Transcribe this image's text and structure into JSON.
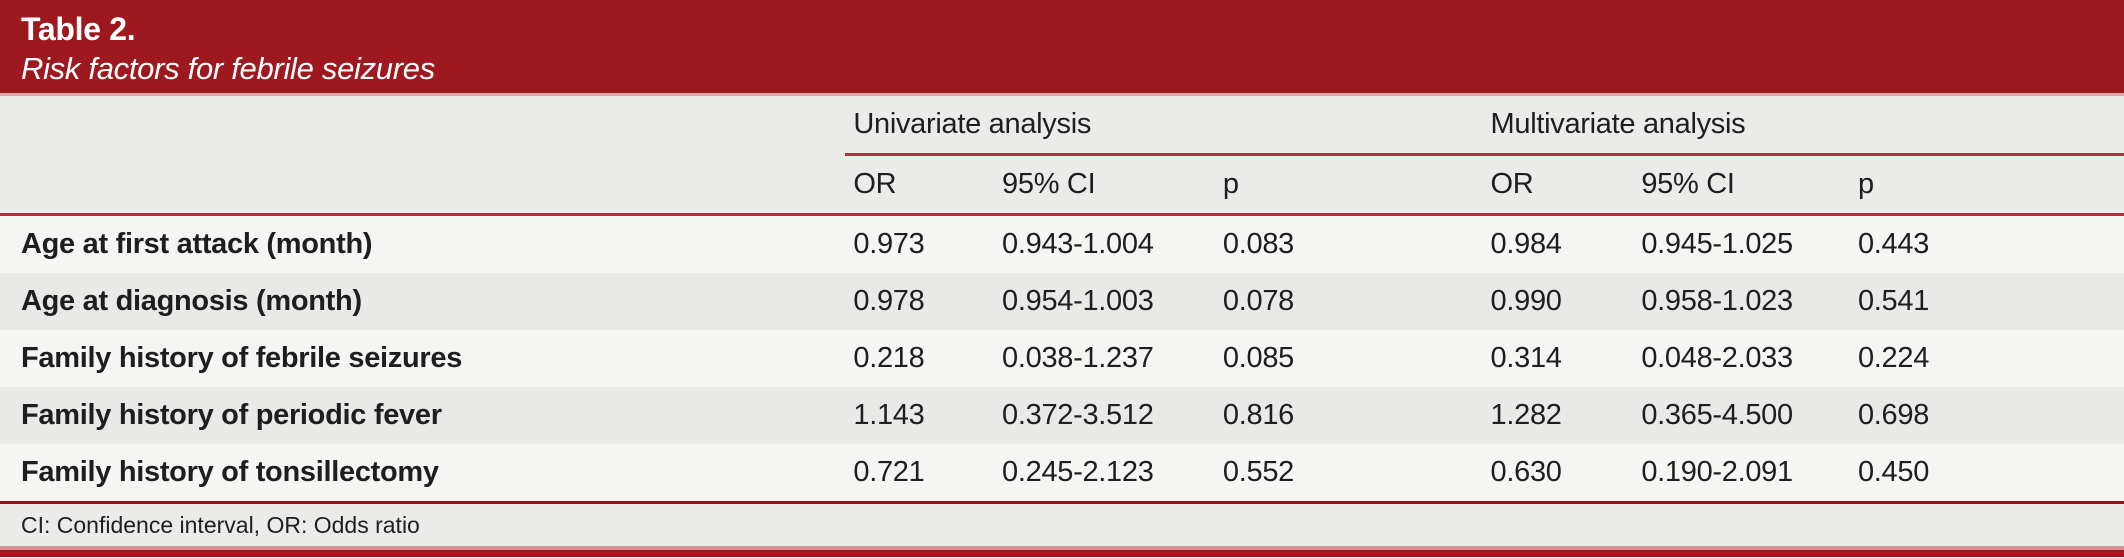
{
  "title": {
    "label": "Table 2.",
    "subtitle": "Risk factors for febrile seizures"
  },
  "colors": {
    "brand_red": "#9e191f",
    "separator_pink": "#dba6a9",
    "rule_red": "#ae3238",
    "rule_dark_red": "#8d171c",
    "row_light": "#f5f5f4",
    "row_gray": "#e9e9e8",
    "header_gray": "#ebebea"
  },
  "table": {
    "groups": [
      {
        "label": "Univariate analysis"
      },
      {
        "label": "Multivariate analysis"
      }
    ],
    "subheaders": [
      "OR",
      "95% CI",
      "p",
      "OR",
      "95% CI",
      "p"
    ],
    "rows": [
      {
        "label": "Age at first attack (month)",
        "values": [
          "0.973",
          "0.943-1.004",
          "0.083",
          "0.984",
          "0.945-1.025",
          "0.443"
        ]
      },
      {
        "label": "Age at diagnosis (month)",
        "values": [
          "0.978",
          "0.954-1.003",
          "0.078",
          "0.990",
          "0.958-1.023",
          "0.541"
        ]
      },
      {
        "label": "Family history of febrile seizures",
        "values": [
          "0.218",
          "0.038-1.237",
          "0.085",
          "0.314",
          "0.048-2.033",
          "0.224"
        ]
      },
      {
        "label": "Family history of periodic fever",
        "values": [
          "1.143",
          "0.372-3.512",
          "0.816",
          "1.282",
          "0.365-4.500",
          "0.698"
        ]
      },
      {
        "label": "Family history of tonsillectomy",
        "values": [
          "0.721",
          "0.245-2.123",
          "0.552",
          "0.630",
          "0.190-2.091",
          "0.450"
        ]
      }
    ],
    "footnote": "CI: Confidence interval, OR: Odds ratio"
  }
}
